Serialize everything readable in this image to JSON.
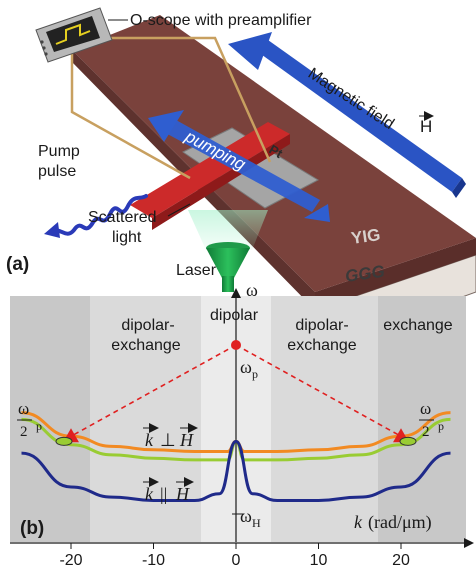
{
  "panel_a": {
    "label": "(a)",
    "oscope": "O-scope with preamplifier",
    "field": "Magnetic field H",
    "field_letter": "H",
    "pumping": "pumping",
    "pt": "Pt",
    "pump_pulse_1": "Pump",
    "pump_pulse_2": "pulse",
    "scattered_1": "Scattered",
    "scattered_2": "light",
    "laser": "Laser",
    "yig": "YIG",
    "ggg": "GGG",
    "colors": {
      "slab": "#6e3c38",
      "slab_top": "#8a4b45",
      "ggg": "#e8e2dc",
      "pt": "#9a9a9a",
      "strip": "#cc2a2a",
      "arrow": "#2a54c4",
      "laser": "#1f9a4a",
      "wire": "#c8a060"
    }
  },
  "panel_b": {
    "label": "(b)",
    "y_axis": "ω",
    "x_axis_label": "k (rad/μm)",
    "region_left": [
      "dipolar-",
      "exchange"
    ],
    "region_center": "dipolar",
    "region_right": [
      "dipolar-",
      "exchange"
    ],
    "region_far_right": "exchange",
    "omega_p": "ωp",
    "omega_p2_top": "ωp",
    "omega_p2_bottom": "2",
    "omega_h": "ωH",
    "perp_label": "k ⊥ H",
    "par_label": "k || H",
    "x_ticks": [
      "-20",
      "-10",
      "0",
      "10",
      "20"
    ],
    "colors": {
      "orange": "#f28a22",
      "green": "#99cc33",
      "navy": "#1f2a8a",
      "red": "#e02020",
      "region_dark": "#c8c8c8",
      "region_mid": "#dadada",
      "region_light": "#ebebeb"
    }
  },
  "chart_data": {
    "type": "line",
    "xlabel": "k (rad/μm)",
    "ylabel": "ω",
    "xlim": [
      -27,
      27
    ],
    "x_ticks": [
      -20,
      -10,
      0,
      10,
      20
    ],
    "series": [
      {
        "name": "k ⊥ H",
        "x": [
          -26,
          -20,
          -15,
          -10,
          -5,
          -1,
          0,
          1,
          5,
          10,
          15,
          20,
          26
        ],
        "y": [
          0.6,
          0.46,
          0.4,
          0.38,
          0.37,
          0.37,
          0.43,
          0.37,
          0.37,
          0.38,
          0.4,
          0.46,
          0.6
        ]
      },
      {
        "name": "",
        "x": [
          -26,
          -20,
          -15,
          -10,
          -5,
          -1,
          0,
          1,
          5,
          10,
          15,
          20,
          26
        ],
        "y": [
          0.56,
          0.41,
          0.35,
          0.33,
          0.32,
          0.32,
          0.43,
          0.32,
          0.32,
          0.33,
          0.35,
          0.41,
          0.56
        ]
      },
      {
        "name": "k || H",
        "x": [
          -26,
          -20,
          -15,
          -10,
          -5,
          -2,
          0,
          2,
          5,
          10,
          15,
          20,
          26
        ],
        "y": [
          0.36,
          0.16,
          0.1,
          0.08,
          0.08,
          0.12,
          0.43,
          0.12,
          0.08,
          0.08,
          0.1,
          0.16,
          0.36
        ]
      }
    ],
    "markers": [
      {
        "label": "ωp",
        "x": 0,
        "y": 1.0
      },
      {
        "label": "",
        "x": -20,
        "y": 0.46
      },
      {
        "label": "",
        "x": 20,
        "y": 0.46
      }
    ],
    "reference_levels": [
      "ωp",
      "ωp/2",
      "ωH"
    ]
  }
}
